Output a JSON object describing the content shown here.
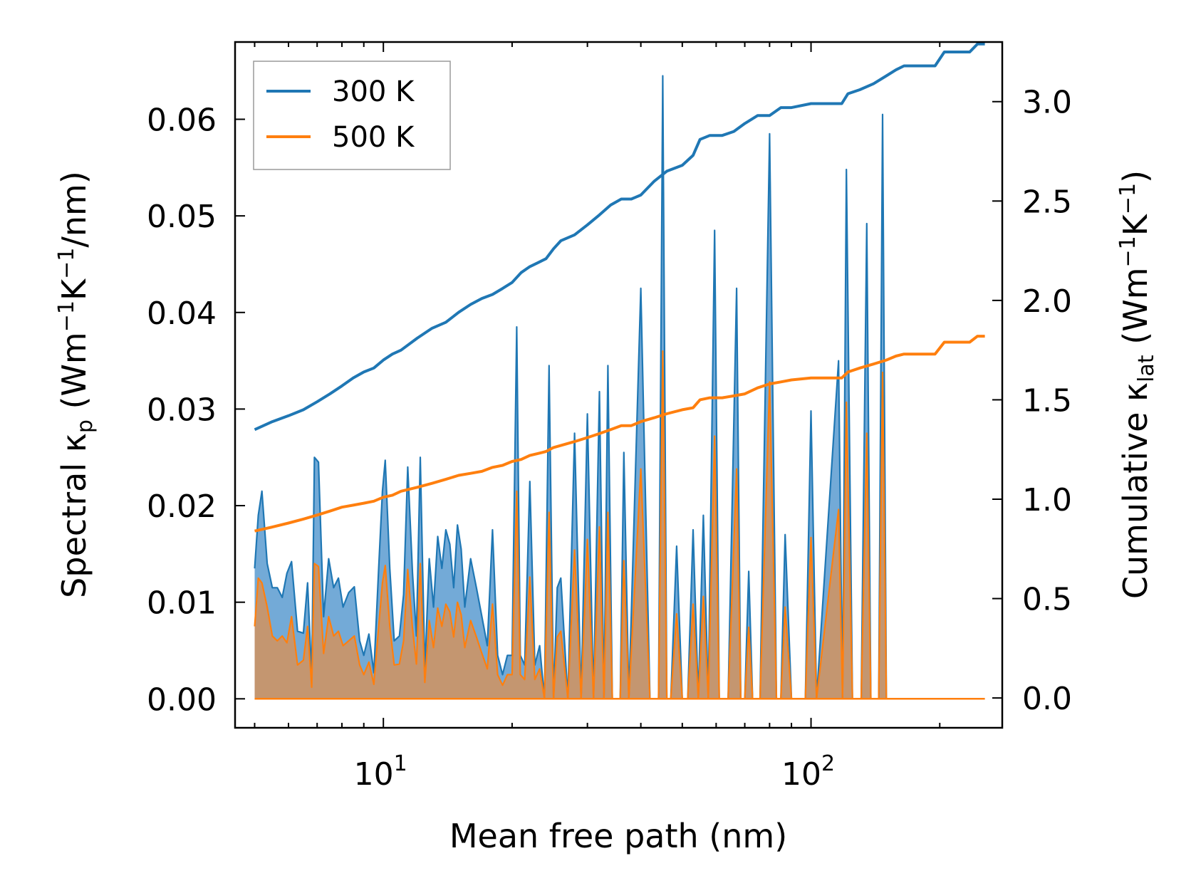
{
  "chart_data": {
    "type": "area",
    "title": "",
    "xlabel": "Mean free path (nm)",
    "ylabel_left": "Spectral κ_p (Wm⁻¹K⁻¹/nm)",
    "ylabel_right": "Cumulative κ_lat (Wm⁻¹K⁻¹)",
    "ylabel_left_parts": {
      "a": "Spectral κ",
      "sub": "p",
      "b": " (Wm",
      "sup1": "−1",
      "c": "K",
      "sup2": "−1",
      "d": "/nm)"
    },
    "ylabel_right_parts": {
      "a": "Cumulative κ",
      "sub": "lat",
      "b": " (Wm",
      "sup1": "−1",
      "c": "K",
      "sup2": "−1",
      "d": ")"
    },
    "xscale": "log",
    "xlim": [
      4.5,
      280
    ],
    "ylim_left": [
      -0.003,
      0.068
    ],
    "ylim_right": [
      -0.15,
      3.3
    ],
    "x_ticks": [
      {
        "base": "10",
        "exp": "1",
        "value": 10
      },
      {
        "base": "10",
        "exp": "2",
        "value": 100
      }
    ],
    "y_left_ticks": [
      "0.00",
      "0.01",
      "0.02",
      "0.03",
      "0.04",
      "0.05",
      "0.06"
    ],
    "y_right_ticks": [
      "0.0",
      "0.5",
      "1.0",
      "1.5",
      "2.0",
      "2.5",
      "3.0"
    ],
    "legend": {
      "position": "top-left",
      "entries": [
        "300 K",
        "500 K"
      ]
    },
    "colors": {
      "s300": "#1f77b4",
      "s500": "#ff7f0e",
      "fill300": "#5b9bd0",
      "fill500": "#c8956a"
    },
    "spectral": {
      "x": [
        5.0,
        5.1,
        5.2,
        5.35,
        5.5,
        5.65,
        5.8,
        5.95,
        6.1,
        6.3,
        6.5,
        6.65,
        6.8,
        6.9,
        7.05,
        7.25,
        7.45,
        7.65,
        7.85,
        8.05,
        8.3,
        8.55,
        8.8,
        9.0,
        9.25,
        9.5,
        9.75,
        9.95,
        10.1,
        10.35,
        10.6,
        10.9,
        11.15,
        11.4,
        11.7,
        11.95,
        12.2,
        12.5,
        12.8,
        13.1,
        13.4,
        13.7,
        14.0,
        14.3,
        14.6,
        14.9,
        15.2,
        15.5,
        16.0,
        16.5,
        17.0,
        17.5,
        18.0,
        18.5,
        19.0,
        19.5,
        20.0,
        20.5,
        20.9,
        21.4,
        22.0,
        22.6,
        23.2,
        23.8,
        24.4,
        25.0,
        25.5,
        26.0,
        27.0,
        28.0,
        29.0,
        30.0,
        31.0,
        32.0,
        32.8,
        33.5,
        34.3,
        35.0,
        35.8,
        36.5,
        37.5,
        40.0,
        42.0,
        43.0,
        44.0,
        45.0,
        46.0,
        47.0,
        48.5,
        50.0,
        51.5,
        53.0,
        54.5,
        56.0,
        57.5,
        59.5,
        61.0,
        64.0,
        67.0,
        68.5,
        70.0,
        71.5,
        73.0,
        74.5,
        76.0,
        80.0,
        83.0,
        85.0,
        87.0,
        90.0,
        97.0,
        100.0,
        103.0,
        116.0,
        118.5,
        121.0,
        125.0,
        128.0,
        131.0,
        135.0,
        138.0,
        141.0,
        144.0,
        147.0,
        150.0,
        154.0,
        158.0,
        162.0,
        165.0,
        190.0,
        195.0,
        200.0,
        205.0,
        210.0,
        235.0,
        240.0,
        245.0,
        250.0,
        255.0
      ],
      "y300": [
        0.0135,
        0.019,
        0.0215,
        0.014,
        0.0115,
        0.0115,
        0.0105,
        0.013,
        0.0142,
        0.007,
        0.0068,
        0.012,
        0.0022,
        0.025,
        0.0245,
        0.0085,
        0.0145,
        0.0115,
        0.0125,
        0.0095,
        0.011,
        0.0116,
        0.006,
        0.0045,
        0.0067,
        0.0027,
        0.0135,
        0.0215,
        0.0247,
        0.0135,
        0.006,
        0.0065,
        0.0108,
        0.024,
        0.013,
        0.0065,
        0.025,
        0.003,
        0.0145,
        0.0095,
        0.0168,
        0.0135,
        0.0175,
        0.016,
        0.0115,
        0.018,
        0.0155,
        0.0095,
        0.0145,
        0.0115,
        0.0085,
        0.0055,
        0.0175,
        0.0045,
        0.0025,
        0.0045,
        0.0045,
        0.0385,
        0.0045,
        0.0035,
        0.0225,
        0.0035,
        0.0055,
        0.0,
        0.0345,
        0.0,
        0.0115,
        0.0125,
        0.0,
        0.0275,
        0.0,
        0.0295,
        0.0,
        0.0318,
        0.0,
        0.0345,
        0.0,
        0.0,
        0.0,
        0.0255,
        0.0,
        0.0425,
        0.0,
        0.0,
        0.0,
        0.0645,
        0.0,
        0.0,
        0.0158,
        0.0,
        0.0,
        0.0175,
        0.0,
        0.019,
        0.0,
        0.0485,
        0.0,
        0.0,
        0.0425,
        0.0,
        0.0,
        0.0132,
        0.0,
        0.0,
        0.0,
        0.0585,
        0.0,
        0.0,
        0.017,
        0.0,
        0.0,
        0.0298,
        0.0,
        0.035,
        0.0,
        0.0548,
        0.0,
        0.0,
        0.0,
        0.0492,
        0.0,
        0.0,
        0.0,
        0.0605,
        0.0
      ],
      "y500": [
        0.0075,
        0.0125,
        0.012,
        0.0095,
        0.0065,
        0.006,
        0.0065,
        0.0058,
        0.0085,
        0.0035,
        0.004,
        0.0075,
        0.0012,
        0.014,
        0.0137,
        0.0047,
        0.0085,
        0.0065,
        0.007,
        0.0055,
        0.006,
        0.0065,
        0.0035,
        0.0025,
        0.0038,
        0.0015,
        0.0075,
        0.012,
        0.0138,
        0.0075,
        0.0035,
        0.0036,
        0.006,
        0.0134,
        0.0073,
        0.0036,
        0.014,
        0.0017,
        0.0081,
        0.0053,
        0.0094,
        0.0075,
        0.0098,
        0.009,
        0.0064,
        0.01,
        0.0087,
        0.0053,
        0.0081,
        0.0064,
        0.0047,
        0.0031,
        0.0098,
        0.0025,
        0.0014,
        0.0025,
        0.0025,
        0.0215,
        0.0025,
        0.002,
        0.0126,
        0.002,
        0.0031,
        0.0,
        0.0193,
        0.0,
        0.0064,
        0.007,
        0.0,
        0.0154,
        0.0,
        0.0165,
        0.0,
        0.0178,
        0.0,
        0.0193,
        0.0,
        0.0,
        0.0,
        0.0143,
        0.0,
        0.0238,
        0.0,
        0.0,
        0.0,
        0.036,
        0.0,
        0.0,
        0.0088,
        0.0,
        0.0,
        0.0098,
        0.0,
        0.0106,
        0.0,
        0.0272,
        0.0,
        0.0,
        0.0238,
        0.0,
        0.0,
        0.0074,
        0.0,
        0.0,
        0.0,
        0.0328,
        0.0,
        0.0,
        0.0095,
        0.0,
        0.0,
        0.0167,
        0.0,
        0.0196,
        0.0,
        0.0307,
        0.0,
        0.0,
        0.0,
        0.0275,
        0.0,
        0.0,
        0.0,
        0.0338,
        0.0
      ]
    },
    "cumulative": {
      "x": [
        5.0,
        5.5,
        6.0,
        6.5,
        7.0,
        7.5,
        8.0,
        8.5,
        9.0,
        9.5,
        10.0,
        10.5,
        11.0,
        12.0,
        13.0,
        14.0,
        15.0,
        16.0,
        17.0,
        18.0,
        19.0,
        20.0,
        21.0,
        22.0,
        23.0,
        24.0,
        25.0,
        26.0,
        28.0,
        30.0,
        32.0,
        34.0,
        36.0,
        38.0,
        40.0,
        43.0,
        46.0,
        50.0,
        53.0,
        55.0,
        58.0,
        62.0,
        66.0,
        70.0,
        75.0,
        80.0,
        85.0,
        90.0,
        100.0,
        110.0,
        118.0,
        122.0,
        130.0,
        140.0,
        150.0,
        158.0,
        165.0,
        185.0,
        195.0,
        205.0,
        220.0,
        235.0,
        245.0,
        255.0
      ],
      "y300": [
        1.35,
        1.39,
        1.42,
        1.45,
        1.49,
        1.53,
        1.57,
        1.61,
        1.64,
        1.66,
        1.7,
        1.73,
        1.75,
        1.81,
        1.86,
        1.89,
        1.94,
        1.98,
        2.01,
        2.03,
        2.06,
        2.09,
        2.14,
        2.17,
        2.19,
        2.21,
        2.26,
        2.3,
        2.33,
        2.38,
        2.43,
        2.48,
        2.51,
        2.51,
        2.53,
        2.6,
        2.65,
        2.68,
        2.73,
        2.81,
        2.83,
        2.83,
        2.85,
        2.89,
        2.93,
        2.93,
        2.97,
        2.97,
        2.99,
        2.99,
        2.99,
        3.04,
        3.06,
        3.09,
        3.13,
        3.16,
        3.18,
        3.18,
        3.18,
        3.25,
        3.25,
        3.25,
        3.29,
        3.29
      ],
      "y500": [
        0.84,
        0.86,
        0.88,
        0.9,
        0.92,
        0.94,
        0.96,
        0.97,
        0.98,
        0.99,
        1.01,
        1.02,
        1.04,
        1.06,
        1.08,
        1.1,
        1.12,
        1.13,
        1.14,
        1.16,
        1.17,
        1.19,
        1.2,
        1.22,
        1.23,
        1.24,
        1.26,
        1.27,
        1.29,
        1.31,
        1.33,
        1.35,
        1.37,
        1.37,
        1.39,
        1.41,
        1.43,
        1.45,
        1.46,
        1.5,
        1.51,
        1.51,
        1.52,
        1.53,
        1.56,
        1.58,
        1.59,
        1.6,
        1.61,
        1.61,
        1.61,
        1.64,
        1.66,
        1.68,
        1.7,
        1.72,
        1.73,
        1.73,
        1.73,
        1.79,
        1.79,
        1.79,
        1.82,
        1.82
      ]
    }
  }
}
